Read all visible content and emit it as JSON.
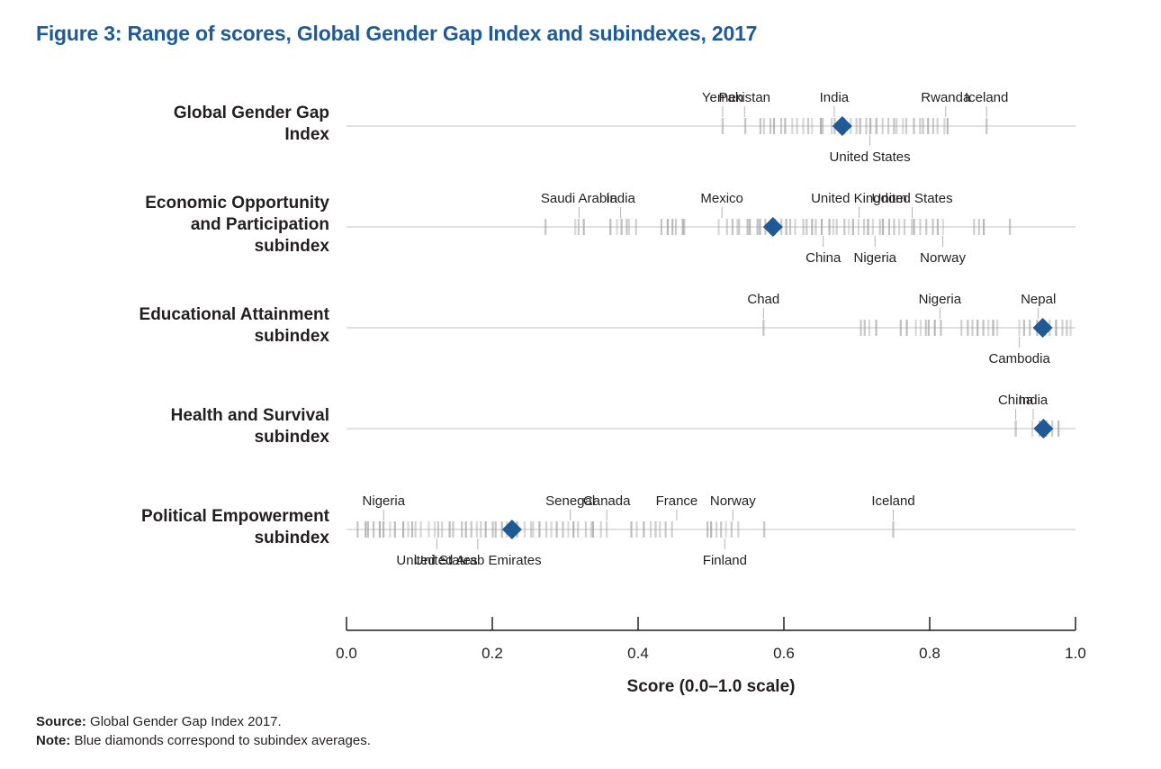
{
  "title": "Figure 3: Range of scores, Global Gender Gap Index and subindexes, 2017",
  "colors": {
    "title": "#1f5a96",
    "diamond": "#1f5a96",
    "tick": "#9c9c9c",
    "axis": "#231f20",
    "baseline": "#cfcfcf"
  },
  "footer": {
    "source_label": "Source:",
    "source_text": " Global Gender Gap Index 2017.",
    "note_label": "Note:",
    "note_text": " Blue diamonds correspond to subindex averages."
  },
  "chart_data": {
    "type": "scatter",
    "xlabel": "Score (0.0–1.0 scale)",
    "xlim": [
      0,
      1
    ],
    "xticks": [
      "0.0",
      "0.2",
      "0.4",
      "0.6",
      "0.8",
      "1.0"
    ],
    "rows": [
      {
        "label": "Global Gender Gap\nIndex",
        "average": 0.68,
        "score_clusters": [
          [
            0.516,
            0.516
          ],
          [
            0.547,
            0.547
          ],
          [
            0.565,
            0.6
          ],
          [
            0.6,
            0.66
          ],
          [
            0.66,
            0.74
          ],
          [
            0.74,
            0.83
          ],
          [
            0.878,
            0.878
          ]
        ],
        "annotations": [
          {
            "country": "Yemen",
            "value": 0.516,
            "position": "above"
          },
          {
            "country": "Pakistan",
            "value": 0.546,
            "position": "above"
          },
          {
            "country": "India",
            "value": 0.669,
            "position": "above"
          },
          {
            "country": "Rwanda",
            "value": 0.822,
            "position": "above"
          },
          {
            "country": "Iceland",
            "value": 0.878,
            "position": "above"
          },
          {
            "country": "United States",
            "value": 0.718,
            "position": "below"
          }
        ]
      },
      {
        "label": "Economic Opportunity\nand Participation\nsubindex",
        "average": 0.585,
        "score_clusters": [
          [
            0.273,
            0.273
          ],
          [
            0.31,
            0.33
          ],
          [
            0.36,
            0.4
          ],
          [
            0.43,
            0.47
          ],
          [
            0.51,
            0.58
          ],
          [
            0.58,
            0.7
          ],
          [
            0.7,
            0.82
          ],
          [
            0.86,
            0.88
          ],
          [
            0.91,
            0.91
          ]
        ],
        "annotations": [
          {
            "country": "Saudi Arabia",
            "value": 0.319,
            "position": "above"
          },
          {
            "country": "India",
            "value": 0.376,
            "position": "above"
          },
          {
            "country": "Mexico",
            "value": 0.515,
            "position": "above"
          },
          {
            "country": "United Kingdom",
            "value": 0.703,
            "position": "above"
          },
          {
            "country": "United States",
            "value": 0.776,
            "position": "above"
          },
          {
            "country": "China",
            "value": 0.654,
            "position": "below"
          },
          {
            "country": "Nigeria",
            "value": 0.725,
            "position": "below"
          },
          {
            "country": "Norway",
            "value": 0.818,
            "position": "below"
          }
        ]
      },
      {
        "label": "Educational Attainment\nsubindex",
        "average": 0.955,
        "score_clusters": [
          [
            0.572,
            0.572
          ],
          [
            0.7,
            0.73
          ],
          [
            0.76,
            0.82
          ],
          [
            0.84,
            0.9
          ],
          [
            0.92,
            1.0
          ]
        ],
        "annotations": [
          {
            "country": "Chad",
            "value": 0.572,
            "position": "above"
          },
          {
            "country": "Nigeria",
            "value": 0.814,
            "position": "above"
          },
          {
            "country": "Nepal",
            "value": 0.949,
            "position": "above"
          },
          {
            "country": "Cambodia",
            "value": 0.923,
            "position": "below"
          }
        ]
      },
      {
        "label": "Health and Survival\nsubindex",
        "average": 0.956,
        "score_clusters": [
          [
            0.918,
            0.918
          ],
          [
            0.94,
            0.98
          ]
        ],
        "annotations": [
          {
            "country": "China",
            "value": 0.918,
            "position": "above"
          },
          {
            "country": "India",
            "value": 0.942,
            "position": "above"
          }
        ]
      },
      {
        "label": "Political Empowerment\nsubindex",
        "average": 0.227,
        "score_clusters": [
          [
            0.013,
            0.08
          ],
          [
            0.08,
            0.16
          ],
          [
            0.16,
            0.24
          ],
          [
            0.24,
            0.3
          ],
          [
            0.3,
            0.36
          ],
          [
            0.39,
            0.45
          ],
          [
            0.49,
            0.52
          ],
          [
            0.52,
            0.54
          ],
          [
            0.573,
            0.573
          ],
          [
            0.75,
            0.75
          ]
        ],
        "annotations": [
          {
            "country": "Nigeria",
            "value": 0.051,
            "position": "above"
          },
          {
            "country": "Senegal",
            "value": 0.307,
            "position": "above"
          },
          {
            "country": "Canada",
            "value": 0.357,
            "position": "above"
          },
          {
            "country": "France",
            "value": 0.453,
            "position": "above"
          },
          {
            "country": "Norway",
            "value": 0.53,
            "position": "above"
          },
          {
            "country": "Iceland",
            "value": 0.75,
            "position": "above"
          },
          {
            "country": "United States",
            "value": 0.124,
            "position": "below"
          },
          {
            "country": "United Arab Emirates",
            "value": 0.18,
            "position": "below"
          },
          {
            "country": "Finland",
            "value": 0.519,
            "position": "below"
          }
        ]
      }
    ]
  }
}
